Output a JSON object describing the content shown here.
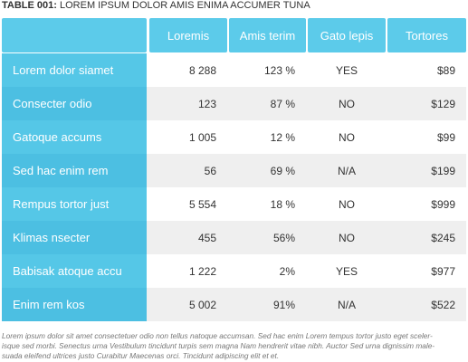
{
  "title": {
    "label": "TABLE 001:",
    "text": "LOREM IPSUM DOLOR AMIS ENIMA ACCUMER TUNA"
  },
  "table": {
    "header": [
      "Loremis",
      "Amis terim",
      "Gato lepis",
      "Tortores"
    ],
    "rows": [
      [
        "Lorem dolor siamet",
        "8 288",
        "123 %",
        "YES",
        "$89"
      ],
      [
        "Consecter odio",
        "123",
        "87 %",
        "NO",
        "$129"
      ],
      [
        "Gatoque accums",
        "1 005",
        "12 %",
        "NO",
        "$99"
      ],
      [
        "Sed hac enim rem",
        "56",
        "69 %",
        "N/A",
        "$199"
      ],
      [
        "Rempus tortor just",
        "5 554",
        "18 %",
        "NO",
        "$999"
      ],
      [
        "Klimas nsecter",
        "455",
        "56%",
        "NO",
        "$245"
      ],
      [
        "Babisak atoque accu",
        "1 222",
        "2%",
        "YES",
        "$977"
      ],
      [
        "Enim rem kos",
        "5 002",
        "91%",
        "N/A",
        "$522"
      ]
    ]
  },
  "footnote": [
    "Lorem ipsum dolor sit amet consectetuer odio non tellus natoque accumsan. Sed hac enim Lorem tempus tortor justo eget sceler-",
    "isque sed morbi. Senectus urna Vestibulum tincidunt turpis sem magna Nam hendrerit vitae nibh. Auctor Sed urna dignissim male-",
    "suada eleifend ultrices justo Curabitur Maecenas orci. Tincidunt adipiscing elit et et."
  ]
}
